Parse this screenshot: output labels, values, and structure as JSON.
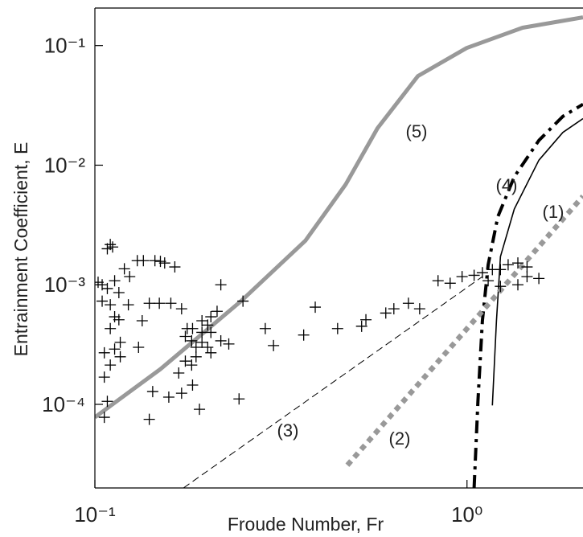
{
  "chart_data": {
    "type": "line",
    "xscale": "log",
    "yscale": "log",
    "xlabel": "Froude Number, Fr",
    "ylabel": "Entrainment Coefficient, E",
    "xlim": [
      0.1,
      2.05
    ],
    "ylim": [
      2e-05,
      0.206
    ],
    "xticks": [
      {
        "value": 0.1,
        "label": "10⁻¹"
      },
      {
        "value": 1,
        "label": "10⁰"
      }
    ],
    "yticks": [
      {
        "value": 0.1,
        "label": "10⁻¹"
      },
      {
        "value": 0.01,
        "label": "10⁻²"
      },
      {
        "value": 0.001,
        "label": "10⁻³"
      },
      {
        "value": 0.0001,
        "label": "10⁻⁴"
      }
    ],
    "series": [
      {
        "label": "(5)",
        "color": "#999999",
        "linestyle": "solid",
        "x": [
          0.1,
          0.15,
          0.247,
          0.368,
          0.472,
          0.575,
          0.738,
          0.998,
          1.41,
          2.05
        ],
        "values": [
          7.8e-05,
          0.000197,
          0.00073,
          0.00234,
          0.0069,
          0.0204,
          0.0556,
          0.0955,
          0.141,
          0.172
        ]
      },
      {
        "label": "(4)",
        "color": "#000000",
        "linestyle": "dashdot",
        "x": [
          1.045,
          1.07,
          1.1,
          1.14,
          1.21,
          1.34,
          1.56,
          1.81,
          2.05
        ],
        "values": [
          2e-05,
          0.000106,
          0.0005,
          0.00147,
          0.0037,
          0.008,
          0.0161,
          0.0256,
          0.0323
        ]
      },
      {
        "label": "(1)",
        "color": "#000000",
        "linestyle": "solid",
        "x": [
          1.17,
          1.2,
          1.23,
          1.34,
          1.56,
          1.81,
          2.05
        ],
        "values": [
          9.8e-05,
          0.0005,
          0.00172,
          0.0043,
          0.011,
          0.0188,
          0.0245
        ]
      },
      {
        "label": "(2)",
        "color": "#999999",
        "linestyle": "dotted",
        "x": [
          0.477,
          2.05
        ],
        "values": [
          3.1e-05,
          0.0055
        ]
      },
      {
        "label": "(3)",
        "color": "#000000",
        "linestyle": "dashed",
        "x": [
          0.173,
          1.1
        ],
        "values": [
          2e-05,
          0.00117
        ]
      },
      {
        "color": "#000000",
        "marker": "+",
        "x": [
          0.102,
          0.1046,
          0.108,
          0.11,
          0.1116,
          0.108,
          0.11,
          0.113,
          0.116,
          0.11,
          0.106,
          0.11,
          0.113,
          0.117,
          0.12,
          0.124,
          0.123,
          0.106,
          0.108,
          0.106,
          0.1046,
          0.113,
          0.116,
          0.13,
          0.135,
          0.145,
          0.15,
          0.154,
          0.164,
          0.14,
          0.149,
          0.16,
          0.171,
          0.134,
          0.117,
          0.131,
          0.168,
          0.218,
          0.25,
          0.287,
          0.213,
          0.194,
          0.183,
          0.177,
          0.175,
          0.182,
          0.187,
          0.201,
          0.175,
          0.182,
          0.187,
          0.205,
          0.205,
          0.201,
          0.194,
          0.205,
          0.194,
          0.218,
          0.229,
          0.244,
          0.302,
          0.364,
          0.391,
          0.449,
          0.521,
          0.535,
          0.605,
          0.636,
          0.696,
          0.746,
          0.836,
          0.901,
          0.97,
          1.045,
          1.1,
          1.17,
          1.23,
          1.29,
          1.37,
          1.45,
          1.56,
          1.45,
          1.14,
          1.23,
          1.37,
          0.143,
          0.158,
          0.171,
          0.183,
          0.191,
          0.14
        ],
        "values": [
          0.00105,
          0.001,
          0.002,
          0.00217,
          0.00207,
          0.00093,
          0.00068,
          0.00054,
          0.00051,
          0.00043,
          0.00027,
          0.000213,
          0.00029,
          0.00025,
          0.00136,
          0.00117,
          0.00068,
          0.000169,
          0.000106,
          7.8e-05,
          0.00073,
          0.00108,
          0.00086,
          0.00159,
          0.00159,
          0.00159,
          0.00157,
          0.00152,
          0.00141,
          0.0007,
          0.0007,
          0.0007,
          0.00063,
          0.0005,
          0.00033,
          0.0003,
          0.000183,
          0.001,
          0.00073,
          0.00043,
          0.0006,
          0.0004,
          0.00043,
          0.00043,
          0.00037,
          0.00034,
          0.0003,
          0.0003,
          0.00023,
          0.000213,
          0.00025,
          0.00027,
          0.0004,
          0.00046,
          0.0005,
          0.00054,
          0.00033,
          0.00034,
          0.00032,
          0.000111,
          0.00031,
          0.00038,
          0.00065,
          0.00043,
          0.00045,
          0.00051,
          0.00058,
          0.00063,
          0.0007,
          0.00063,
          0.00108,
          0.00103,
          0.00117,
          0.0012,
          0.00126,
          0.00134,
          0.00134,
          0.00147,
          0.00152,
          0.00141,
          0.00113,
          0.00117,
          0.00108,
          0.00097,
          0.001,
          0.000128,
          0.000115,
          0.000124,
          0.000145,
          9.1e-05,
          7.5e-05
        ]
      }
    ]
  }
}
